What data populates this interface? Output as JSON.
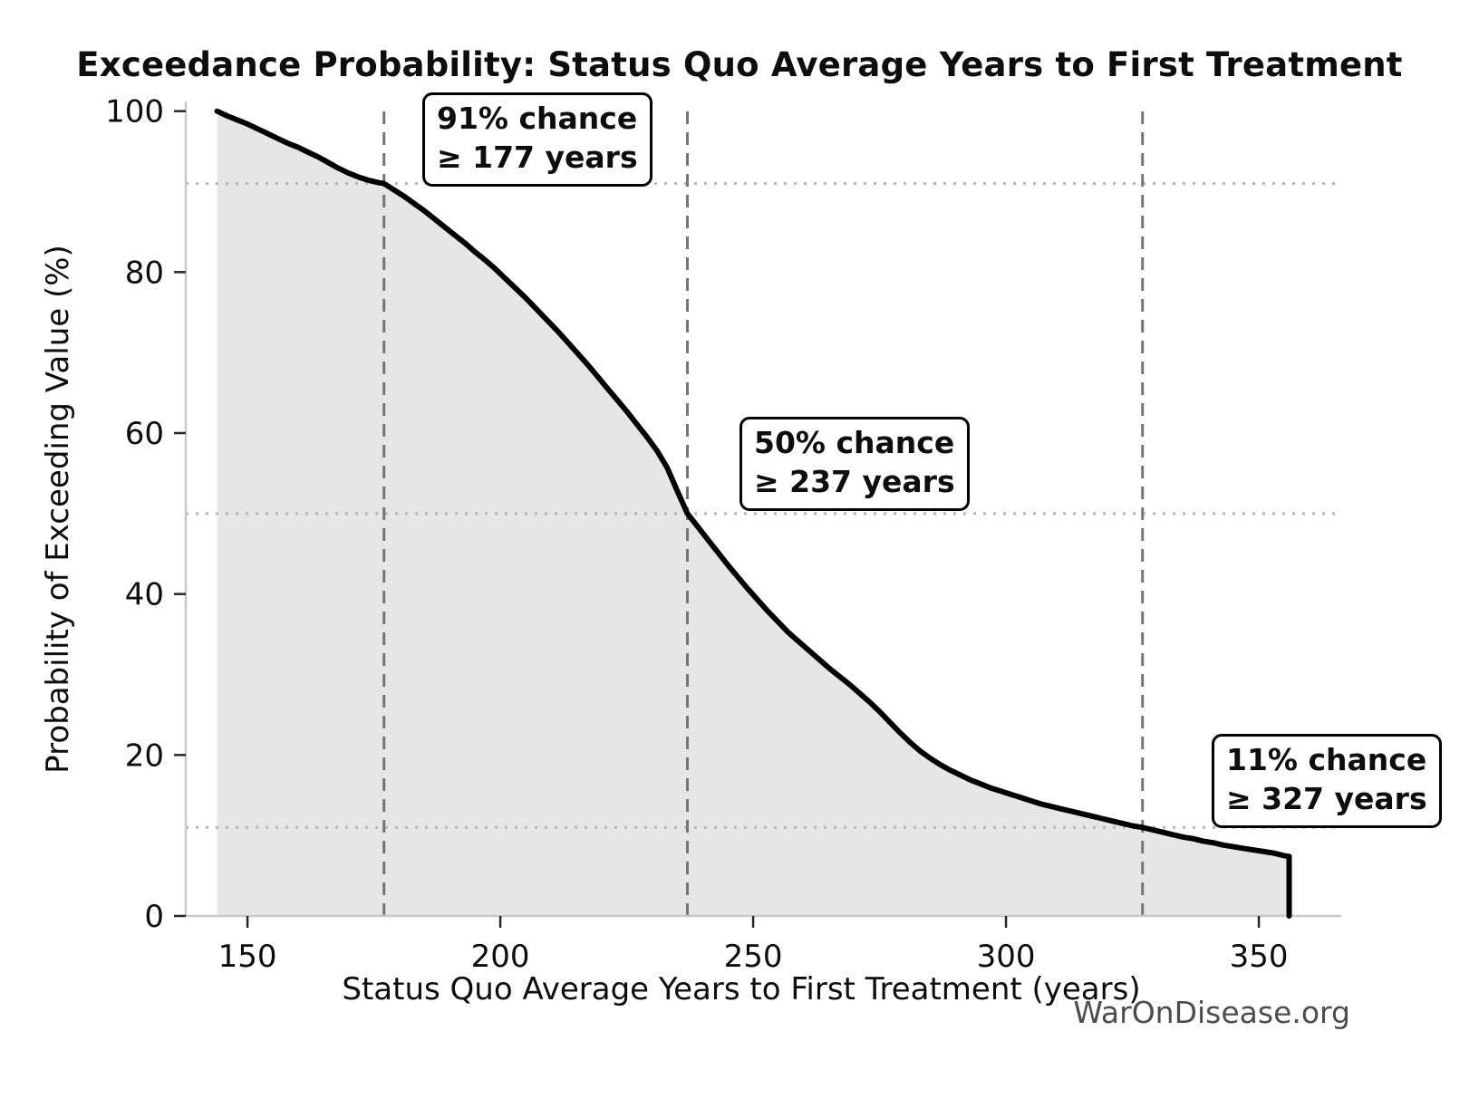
{
  "title": "Exceedance Probability: Status Quo Average Years to First Treatment",
  "watermark": "WarOnDisease.org",
  "chart_data": {
    "type": "area",
    "title": "Exceedance Probability: Status Quo Average Years to First Treatment",
    "xlabel": "Status Quo Average Years to First Treatment (years)",
    "ylabel": "Probability of Exceeding Value (%)",
    "xlim": [
      137.8,
      366.3
    ],
    "ylim": [
      0,
      101.2
    ],
    "x_ticks": [
      150,
      200,
      250,
      300,
      350
    ],
    "y_ticks": [
      0,
      20,
      40,
      60,
      80,
      100
    ],
    "grid": "off",
    "legend": "none",
    "colors": {
      "line": "#000000",
      "fill": "#e6e6e6",
      "dashed_reference": "#757575",
      "dotted_reference": "#b5b5b5",
      "spine": "#c9c9c9",
      "tick": "#262626",
      "text": "#0d0d0d",
      "watermark": "#4d4d4d"
    },
    "reference_lines": {
      "vertical_dashed_x": [
        177,
        237,
        327
      ],
      "horizontal_dotted_p": [
        91,
        50,
        11
      ]
    },
    "annotations": [
      {
        "line1": "91% chance",
        "line2": "≥ 177 years",
        "anchor_x": 177,
        "anchor_p": 91
      },
      {
        "line1": "50% chance",
        "line2": "≥ 237 years",
        "anchor_x": 237,
        "anchor_p": 50
      },
      {
        "line1": "11% chance",
        "line2": "≥ 327 years",
        "anchor_x": 327,
        "anchor_p": 11
      }
    ],
    "curve_end_drop": {
      "x": 356,
      "from_p": 7.4,
      "to_p": 0
    },
    "curve_points": [
      [
        144,
        100
      ],
      [
        146,
        99.4
      ],
      [
        148,
        98.9
      ],
      [
        150,
        98.4
      ],
      [
        152,
        97.8
      ],
      [
        154,
        97.2
      ],
      [
        156,
        96.6
      ],
      [
        158,
        96.0
      ],
      [
        160,
        95.5
      ],
      [
        162,
        94.9
      ],
      [
        164,
        94.3
      ],
      [
        166,
        93.6
      ],
      [
        168,
        92.9
      ],
      [
        170,
        92.3
      ],
      [
        172,
        91.8
      ],
      [
        174,
        91.4
      ],
      [
        176,
        91.1
      ],
      [
        177,
        91.0
      ],
      [
        179,
        90.2
      ],
      [
        181,
        89.4
      ],
      [
        183,
        88.5
      ],
      [
        185,
        87.6
      ],
      [
        187,
        86.6
      ],
      [
        189,
        85.6
      ],
      [
        191,
        84.6
      ],
      [
        193,
        83.6
      ],
      [
        195,
        82.5
      ],
      [
        197,
        81.5
      ],
      [
        199,
        80.4
      ],
      [
        201,
        79.2
      ],
      [
        203,
        78.0
      ],
      [
        205,
        76.8
      ],
      [
        207,
        75.5
      ],
      [
        209,
        74.2
      ],
      [
        211,
        72.9
      ],
      [
        213,
        71.5
      ],
      [
        215,
        70.1
      ],
      [
        217,
        68.7
      ],
      [
        219,
        67.2
      ],
      [
        221,
        65.7
      ],
      [
        223,
        64.2
      ],
      [
        225,
        62.7
      ],
      [
        227,
        61.1
      ],
      [
        229,
        59.5
      ],
      [
        231,
        57.8
      ],
      [
        233,
        55.7
      ],
      [
        235,
        52.8
      ],
      [
        237,
        50.0
      ],
      [
        239,
        48.4
      ],
      [
        241,
        46.8
      ],
      [
        243,
        45.2
      ],
      [
        245,
        43.6
      ],
      [
        247,
        42.1
      ],
      [
        249,
        40.6
      ],
      [
        251,
        39.2
      ],
      [
        253,
        37.8
      ],
      [
        255,
        36.5
      ],
      [
        257,
        35.2
      ],
      [
        259,
        34.1
      ],
      [
        261,
        33.0
      ],
      [
        263,
        31.9
      ],
      [
        265,
        30.8
      ],
      [
        267,
        29.8
      ],
      [
        269,
        28.8
      ],
      [
        271,
        27.7
      ],
      [
        273,
        26.6
      ],
      [
        275,
        25.4
      ],
      [
        277,
        24.1
      ],
      [
        279,
        22.8
      ],
      [
        281,
        21.6
      ],
      [
        283,
        20.5
      ],
      [
        285,
        19.6
      ],
      [
        287,
        18.8
      ],
      [
        289,
        18.1
      ],
      [
        291,
        17.5
      ],
      [
        293,
        16.9
      ],
      [
        295,
        16.4
      ],
      [
        297,
        15.9
      ],
      [
        299,
        15.5
      ],
      [
        301,
        15.1
      ],
      [
        303,
        14.7
      ],
      [
        305,
        14.3
      ],
      [
        307,
        13.9
      ],
      [
        309,
        13.6
      ],
      [
        311,
        13.3
      ],
      [
        313,
        13.0
      ],
      [
        315,
        12.7
      ],
      [
        317,
        12.4
      ],
      [
        319,
        12.1
      ],
      [
        321,
        11.8
      ],
      [
        323,
        11.5
      ],
      [
        325,
        11.2
      ],
      [
        327,
        11.0
      ],
      [
        329,
        10.7
      ],
      [
        331,
        10.4
      ],
      [
        333,
        10.1
      ],
      [
        335,
        9.8
      ],
      [
        337,
        9.6
      ],
      [
        339,
        9.3
      ],
      [
        341,
        9.1
      ],
      [
        343,
        8.8
      ],
      [
        345,
        8.6
      ],
      [
        347,
        8.4
      ],
      [
        349,
        8.2
      ],
      [
        351,
        8.0
      ],
      [
        353,
        7.8
      ],
      [
        355,
        7.5
      ],
      [
        356,
        7.4
      ]
    ]
  }
}
